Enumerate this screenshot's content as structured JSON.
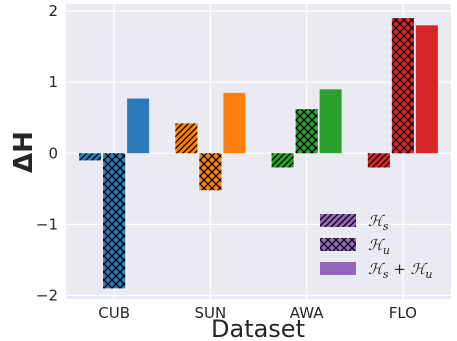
{
  "chart_data": {
    "type": "bar",
    "title": "",
    "xlabel": "Dataset",
    "ylabel": "ΔH",
    "categories": [
      "CUB",
      "SUN",
      "AWA",
      "FLO"
    ],
    "category_colors": [
      "#2a7ab9",
      "#ff7f0e",
      "#2ca02c",
      "#d62728"
    ],
    "ylim": [
      -2.05,
      2.1
    ],
    "yticks": [
      -2,
      -1,
      0,
      1,
      2
    ],
    "ytick_labels": [
      "−2",
      "−1",
      "0",
      "1",
      "2"
    ],
    "grid": true,
    "legend_position": "bottom-right",
    "legend_color": "#9467bd",
    "series": [
      {
        "name": "H_s",
        "label": "ℋ",
        "sub": "s",
        "hatch": "diagonal",
        "values": [
          -0.1,
          0.42,
          -0.2,
          -0.2
        ]
      },
      {
        "name": "H_u",
        "label": "ℋ",
        "sub": "u",
        "hatch": "crosshatch",
        "values": [
          -1.9,
          -0.52,
          0.62,
          1.9
        ]
      },
      {
        "name": "H_s + H_u",
        "label": "ℋ",
        "sub": "s",
        "label2": " + ℋ",
        "sub2": "u",
        "hatch": "none",
        "values": [
          0.77,
          0.85,
          0.9,
          1.8
        ]
      }
    ]
  }
}
